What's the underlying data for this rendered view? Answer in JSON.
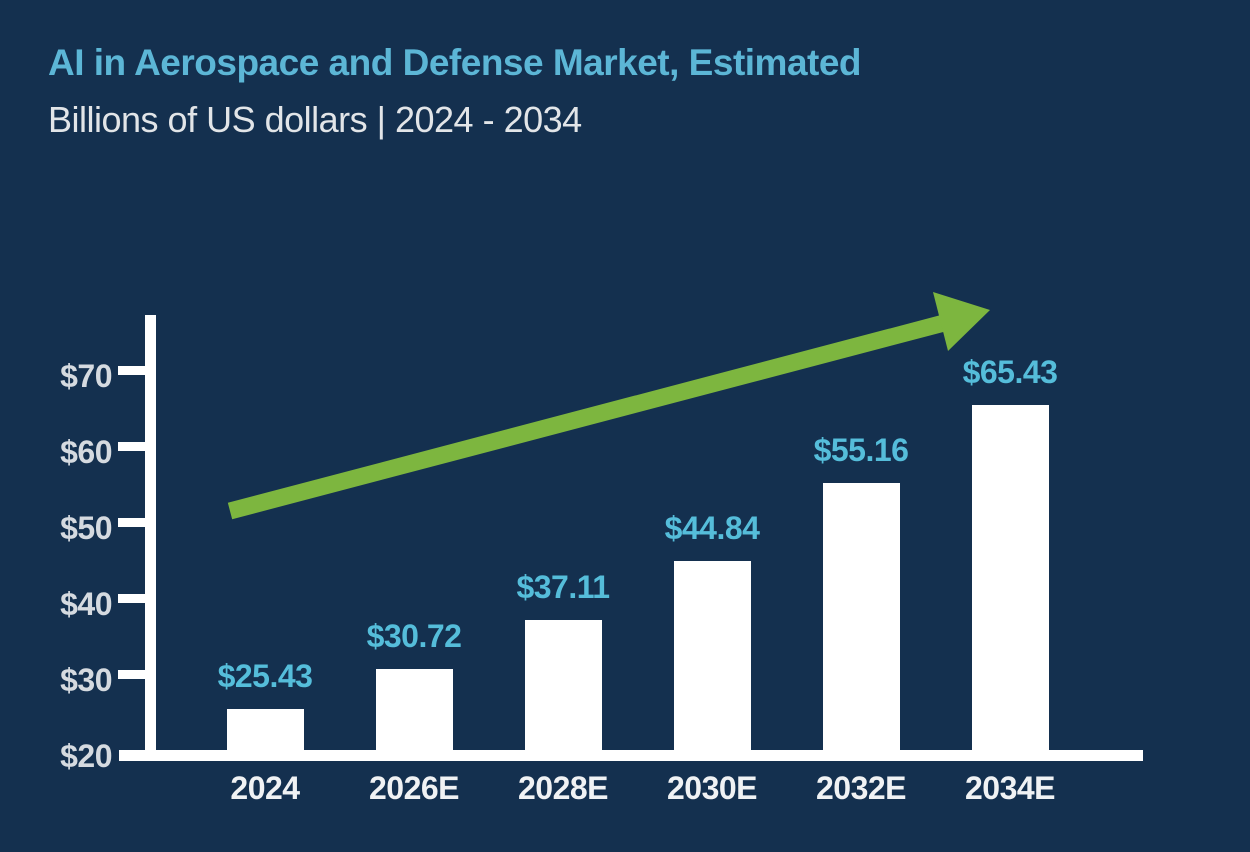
{
  "page": {
    "background_color": "#14304f"
  },
  "header": {
    "title": "AI in Aerospace and Defense Market, Estimated",
    "title_color": "#5cb6d6",
    "subtitle": "Billions of US dollars | 2024 - 2034",
    "subtitle_color": "#e2e5e8"
  },
  "chart_data": {
    "type": "bar",
    "title": "AI in Aerospace and Defense Market, Estimated",
    "subtitle": "Billions of US dollars | 2024 - 2034",
    "unit": "Billions of US dollars",
    "categories": [
      "2024",
      "2026E",
      "2028E",
      "2030E",
      "2032E",
      "2034E"
    ],
    "values": [
      25.43,
      30.72,
      37.11,
      44.84,
      55.16,
      65.43
    ],
    "value_labels": [
      "$25.43",
      "$30.72",
      "$37.11",
      "$44.84",
      "$55.16",
      "$65.43"
    ],
    "xlabel": "",
    "ylabel": "US dollars (billions)",
    "ylim": [
      20,
      77
    ],
    "yticks": [
      20,
      30,
      40,
      50,
      60,
      70
    ],
    "ytick_labels": [
      "$20",
      "$30",
      "$40",
      "$50",
      "$60",
      "$70"
    ],
    "grid": false,
    "legend": "none",
    "bar_color": "#ffffff",
    "axis_color": "#ffffff",
    "value_label_color": "#55bdda",
    "ytick_label_color": "#d5dae0",
    "xtick_label_color": "#f0f2f4",
    "annotations": [
      {
        "type": "trend-arrow",
        "description": "upward growth arrow across chart",
        "color": "#7db63f",
        "direction": "up-right"
      }
    ]
  }
}
